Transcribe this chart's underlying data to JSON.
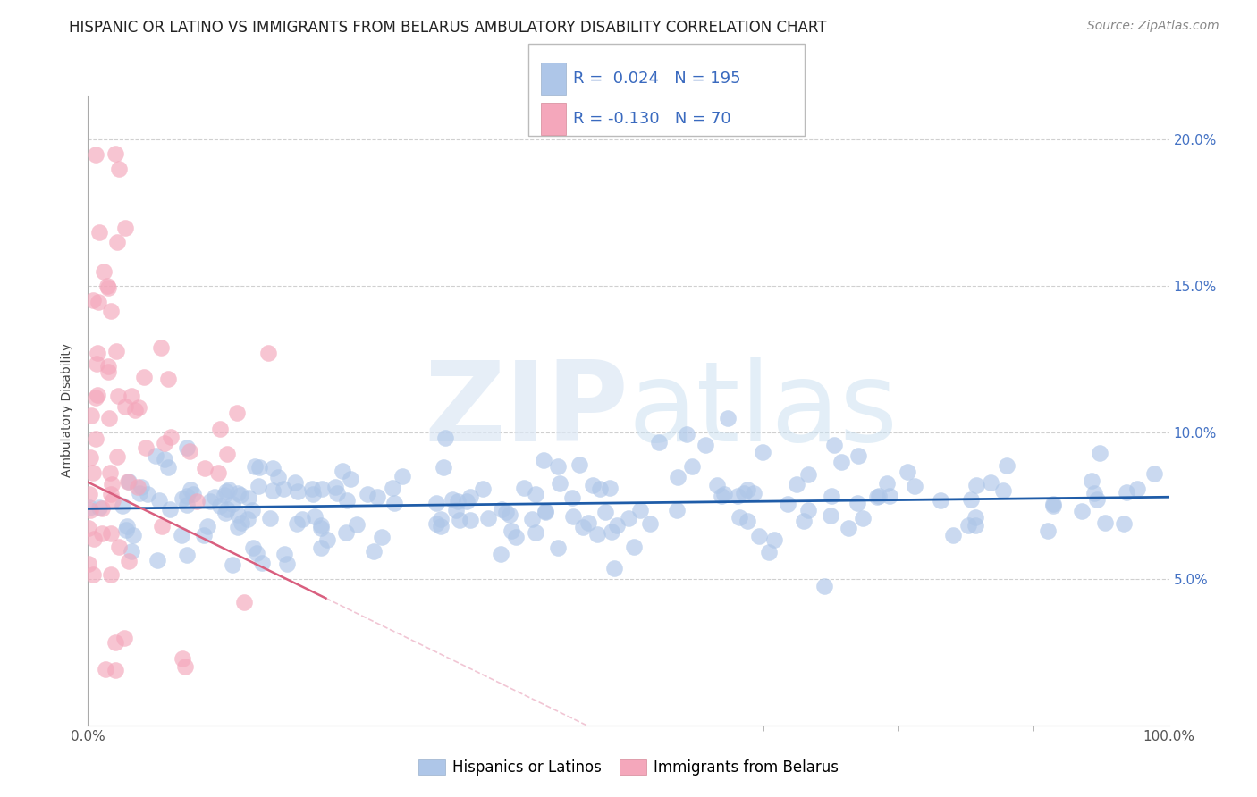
{
  "title": "HISPANIC OR LATINO VS IMMIGRANTS FROM BELARUS AMBULATORY DISABILITY CORRELATION CHART",
  "source": "Source: ZipAtlas.com",
  "ylabel": "Ambulatory Disability",
  "xlim": [
    0.0,
    1.0
  ],
  "ylim": [
    0.0,
    0.215
  ],
  "blue_R": 0.024,
  "blue_N": 195,
  "pink_R": -0.13,
  "pink_N": 70,
  "blue_color": "#aec6e8",
  "pink_color": "#f4a7bb",
  "blue_line_color": "#1f5ca8",
  "pink_line_color": "#d95f7f",
  "pink_dashed_color": "#e8a0b8",
  "legend_blue_label": "Hispanics or Latinos",
  "legend_pink_label": "Immigrants from Belarus",
  "watermark_zip": "ZIP",
  "watermark_atlas": "atlas",
  "ytick_vals": [
    0.05,
    0.1,
    0.15,
    0.2
  ],
  "ytick_labels": [
    "5.0%",
    "10.0%",
    "15.0%",
    "20.0%"
  ],
  "grid_color": "#d0d0d0",
  "background_color": "#ffffff",
  "title_fontsize": 12,
  "axis_label_fontsize": 10,
  "tick_fontsize": 11,
  "legend_fontsize": 12,
  "source_fontsize": 10,
  "right_ytick_color": "#4472c4",
  "right_ytick_fontsize": 11
}
